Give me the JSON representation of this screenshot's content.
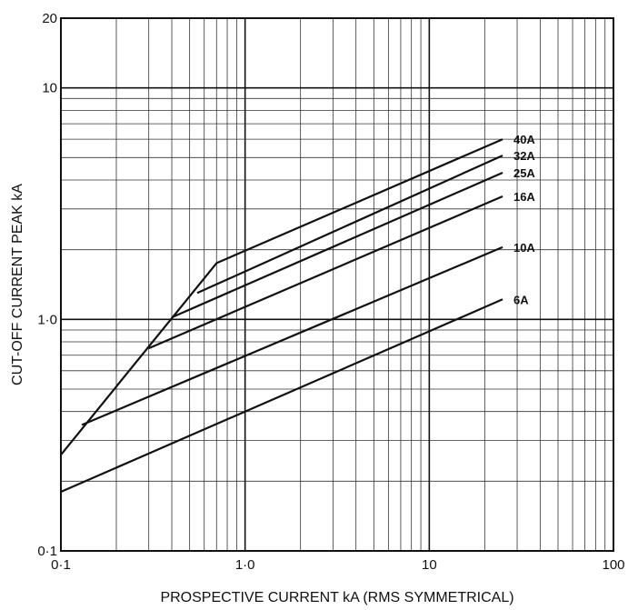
{
  "chart_data": {
    "type": "line",
    "title": "",
    "xlabel": "PROSPECTIVE CURRENT kA (RMS SYMMETRICAL)",
    "ylabel": "CUT-OFF CURRENT PEAK kA",
    "xscale": "log",
    "yscale": "log",
    "xlim": [
      0.1,
      100
    ],
    "ylim": [
      0.1,
      20
    ],
    "xticks": [
      {
        "value": 0.1,
        "label": "0·1"
      },
      {
        "value": 1,
        "label": "1·0"
      },
      {
        "value": 10,
        "label": "10"
      },
      {
        "value": 100,
        "label": "100"
      }
    ],
    "yticks": [
      {
        "value": 0.1,
        "label": "0·1"
      },
      {
        "value": 1,
        "label": "1·0"
      },
      {
        "value": 10,
        "label": "10"
      },
      {
        "value": 20,
        "label": "20"
      }
    ],
    "grid": true,
    "legend": "labels at line ends",
    "series": [
      {
        "name": "40A",
        "points": [
          [
            0.1,
            0.26
          ],
          [
            0.7,
            1.75
          ],
          [
            25,
            6.0
          ]
        ]
      },
      {
        "name": "32A",
        "points": [
          [
            0.55,
            1.3
          ],
          [
            25,
            5.1
          ]
        ]
      },
      {
        "name": "25A",
        "points": [
          [
            0.4,
            1.02
          ],
          [
            25,
            4.3
          ]
        ]
      },
      {
        "name": "16A",
        "points": [
          [
            0.3,
            0.75
          ],
          [
            25,
            3.4
          ]
        ]
      },
      {
        "name": "10A",
        "points": [
          [
            0.13,
            0.35
          ],
          [
            25,
            2.05
          ]
        ]
      },
      {
        "name": "6A",
        "points": [
          [
            0.1,
            0.18
          ],
          [
            25,
            1.22
          ]
        ]
      }
    ],
    "colors": {
      "line": "#111111",
      "grid_major": "#111111",
      "grid_minor": "#333333"
    }
  }
}
